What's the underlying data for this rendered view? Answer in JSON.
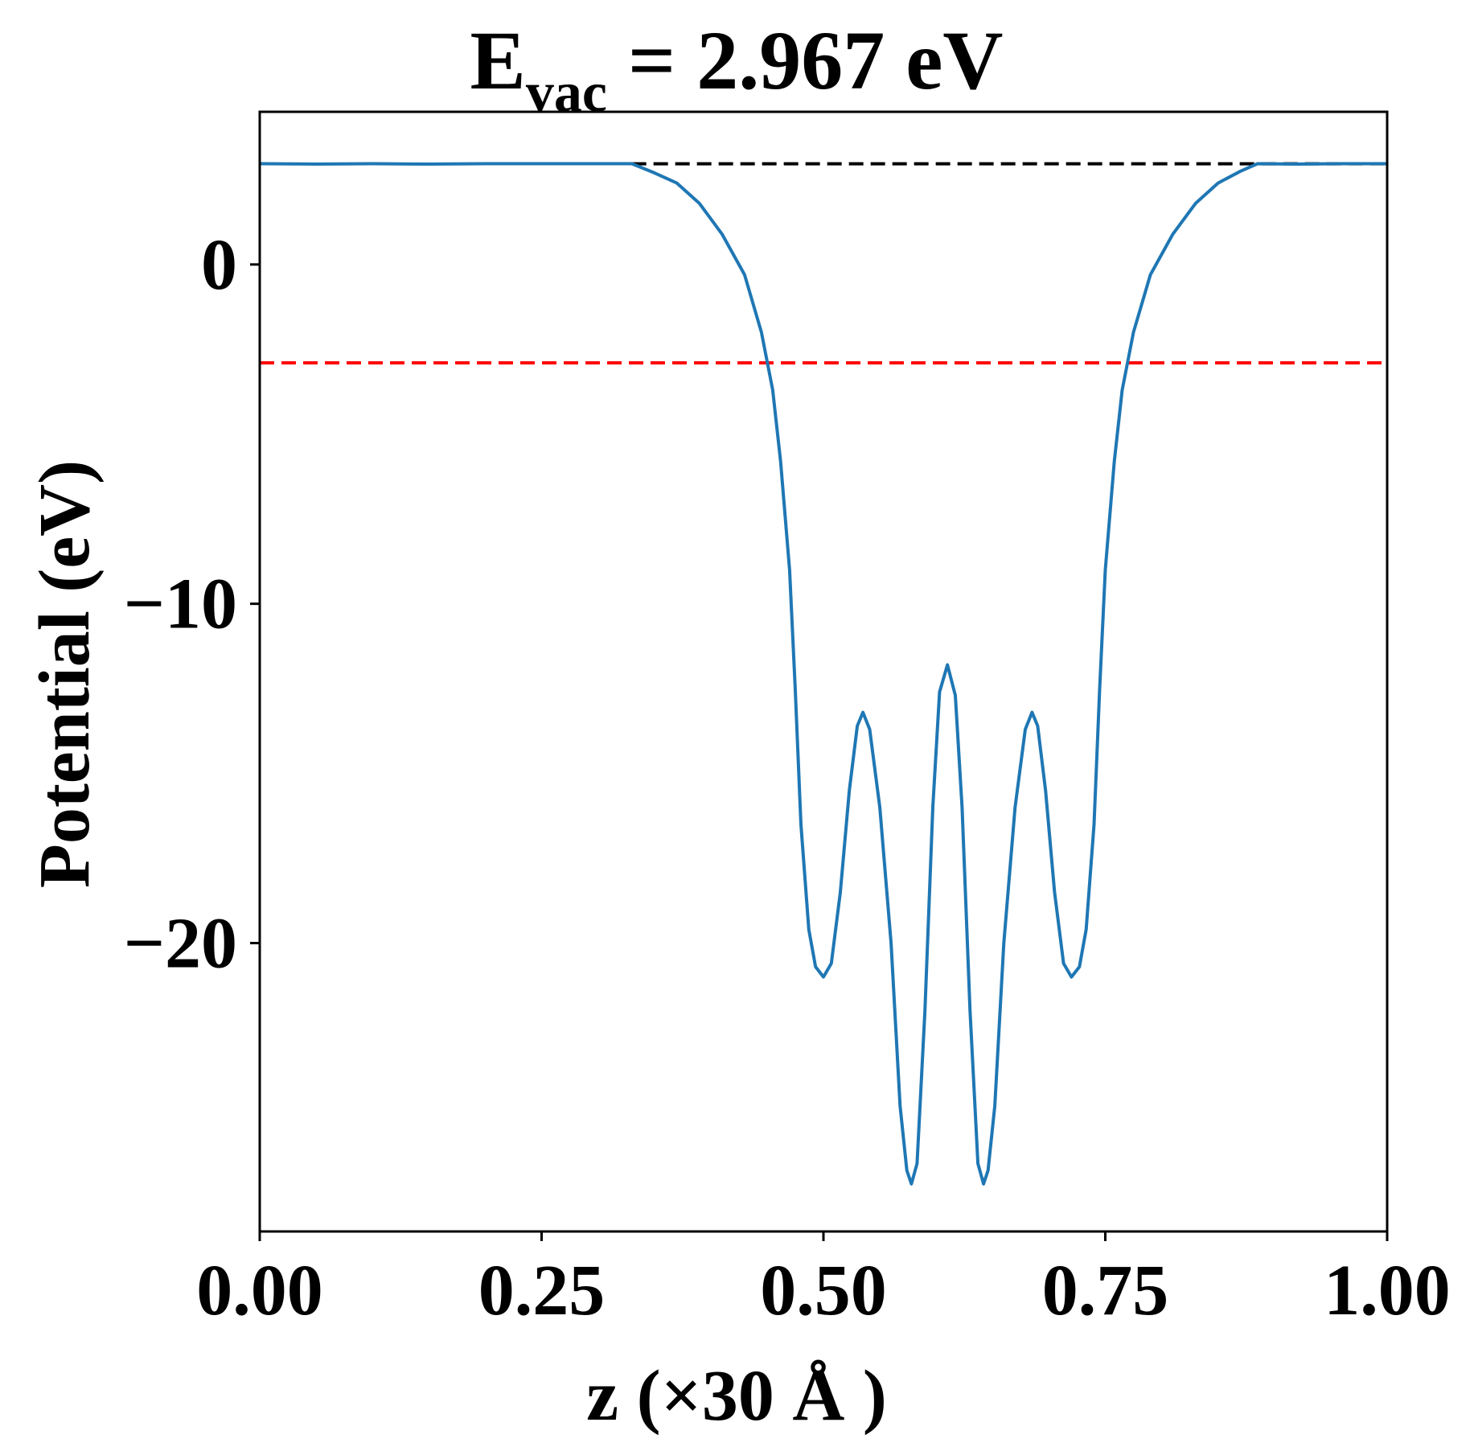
{
  "chart_data": {
    "type": "line",
    "title": {
      "main": "E",
      "subscript": "vac",
      "rest": " = 2.967 eV"
    },
    "xlabel": "z (×30 Å )",
    "ylabel": "Potential (eV)",
    "xlim": [
      0,
      1
    ],
    "ylim": [
      -28.5,
      4.5
    ],
    "xticks": [
      {
        "value": 0.0,
        "label": "0.00"
      },
      {
        "value": 0.25,
        "label": "0.25"
      },
      {
        "value": 0.5,
        "label": "0.50"
      },
      {
        "value": 0.75,
        "label": "0.75"
      },
      {
        "value": 1.0,
        "label": "1.00"
      }
    ],
    "yticks": [
      {
        "value": 0,
        "label": "0"
      },
      {
        "value": -10,
        "label": "−10"
      },
      {
        "value": -20,
        "label": "−20"
      }
    ],
    "grid": false,
    "legend": "none",
    "series": [
      {
        "color": "#1f77b4",
        "points": [
          [
            0.0,
            2.97
          ],
          [
            0.05,
            2.96
          ],
          [
            0.1,
            2.97
          ],
          [
            0.15,
            2.96
          ],
          [
            0.2,
            2.97
          ],
          [
            0.25,
            2.97
          ],
          [
            0.3,
            2.97
          ],
          [
            0.33,
            2.97
          ],
          [
            0.35,
            2.7
          ],
          [
            0.37,
            2.4
          ],
          [
            0.39,
            1.8
          ],
          [
            0.41,
            0.9
          ],
          [
            0.43,
            -0.3
          ],
          [
            0.445,
            -2.0
          ],
          [
            0.455,
            -3.7
          ],
          [
            0.462,
            -5.8
          ],
          [
            0.47,
            -9.0
          ],
          [
            0.475,
            -12.5
          ],
          [
            0.48,
            -16.5
          ],
          [
            0.487,
            -19.6
          ],
          [
            0.493,
            -20.7
          ],
          [
            0.5,
            -21.0
          ],
          [
            0.507,
            -20.6
          ],
          [
            0.515,
            -18.5
          ],
          [
            0.523,
            -15.5
          ],
          [
            0.53,
            -13.6
          ],
          [
            0.535,
            -13.2
          ],
          [
            0.541,
            -13.7
          ],
          [
            0.55,
            -16.0
          ],
          [
            0.56,
            -20.0
          ],
          [
            0.568,
            -24.8
          ],
          [
            0.574,
            -26.7
          ],
          [
            0.578,
            -27.1
          ],
          [
            0.583,
            -26.5
          ],
          [
            0.59,
            -22.0
          ],
          [
            0.597,
            -16.0
          ],
          [
            0.603,
            -12.6
          ],
          [
            0.61,
            -11.8
          ],
          [
            0.617,
            -12.7
          ],
          [
            0.623,
            -16.0
          ],
          [
            0.63,
            -22.0
          ],
          [
            0.637,
            -26.5
          ],
          [
            0.642,
            -27.1
          ],
          [
            0.646,
            -26.7
          ],
          [
            0.652,
            -24.8
          ],
          [
            0.66,
            -20.0
          ],
          [
            0.67,
            -16.0
          ],
          [
            0.679,
            -13.7
          ],
          [
            0.685,
            -13.2
          ],
          [
            0.69,
            -13.6
          ],
          [
            0.697,
            -15.5
          ],
          [
            0.705,
            -18.5
          ],
          [
            0.713,
            -20.6
          ],
          [
            0.72,
            -21.0
          ],
          [
            0.727,
            -20.7
          ],
          [
            0.733,
            -19.6
          ],
          [
            0.74,
            -16.5
          ],
          [
            0.745,
            -12.5
          ],
          [
            0.75,
            -9.0
          ],
          [
            0.758,
            -5.8
          ],
          [
            0.765,
            -3.7
          ],
          [
            0.775,
            -2.0
          ],
          [
            0.79,
            -0.3
          ],
          [
            0.81,
            0.9
          ],
          [
            0.83,
            1.8
          ],
          [
            0.85,
            2.4
          ],
          [
            0.87,
            2.75
          ],
          [
            0.885,
            2.97
          ],
          [
            0.92,
            2.96
          ],
          [
            0.96,
            2.97
          ],
          [
            1.0,
            2.97
          ]
        ]
      }
    ],
    "reference_lines": [
      {
        "y": 2.967,
        "color": "#000000",
        "style": "dashed",
        "x_start": 0.33,
        "x_end": 1.0
      },
      {
        "y": -2.9,
        "color": "#ff0000",
        "style": "dashed",
        "x_start": 0.0,
        "x_end": 1.0
      }
    ]
  }
}
